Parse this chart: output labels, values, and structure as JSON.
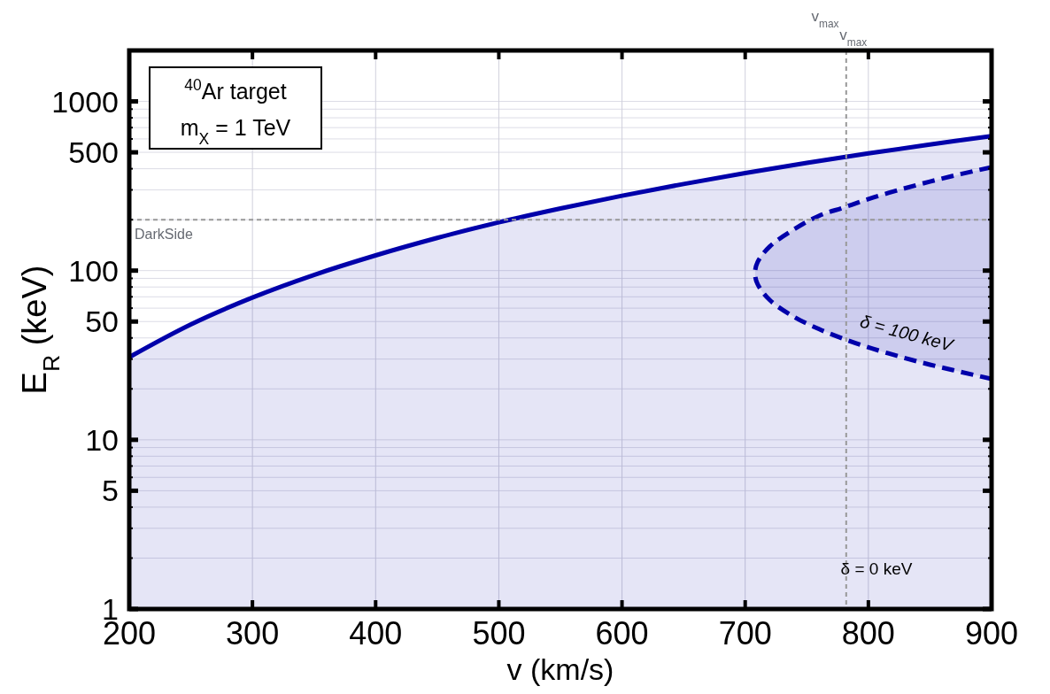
{
  "chart_data": {
    "type": "area",
    "xlabel": "v (km/s)",
    "ylabel": "E$_{R}$  (keV)",
    "log": "y",
    "grid": true,
    "xlim": [
      200,
      900
    ],
    "xticks": [
      200,
      300,
      400,
      500,
      600,
      700,
      800,
      900
    ],
    "ylim": [
      1,
      2000
    ],
    "yticks": [
      1,
      {
        "value": 2,
        "label": null
      },
      {
        "value": 3,
        "label": null
      },
      {
        "value": 4,
        "label": null
      },
      5,
      {
        "value": 6,
        "label": null
      },
      {
        "value": 7,
        "label": null
      },
      {
        "value": 8,
        "label": null
      },
      {
        "value": 9,
        "label": null
      },
      10,
      {
        "value": 20,
        "label": null
      },
      {
        "value": 30,
        "label": null
      },
      {
        "value": 40,
        "label": null
      },
      50,
      {
        "value": 60,
        "label": null
      },
      {
        "value": 70,
        "label": null
      },
      {
        "value": 80,
        "label": null
      },
      {
        "value": 90,
        "label": null
      },
      100,
      {
        "value": 200,
        "label": null
      },
      {
        "value": 300,
        "label": null
      },
      {
        "value": 400,
        "label": null
      },
      500,
      {
        "value": 600,
        "label": null
      },
      {
        "value": 700,
        "label": null
      },
      {
        "value": 800,
        "label": null
      },
      {
        "value": 900,
        "label": null
      },
      1000,
      {
        "value": 2000,
        "label": null
      }
    ],
    "series": [
      {
        "color": "#0000aa",
        "line_style": "solid",
        "x": [
          200,
          250,
          300,
          350,
          400,
          450,
          500,
          550,
          600,
          650,
          700,
          750,
          800,
          850,
          900
        ],
        "values": [
          30.8,
          48.1,
          69.3,
          94.3,
          123,
          156,
          193,
          233,
          277,
          325,
          377,
          433,
          493,
          556,
          624
        ]
      },
      {
        "color": "#0000aa",
        "line_style": "dashed",
        "x": [
          900,
          875,
          850,
          825,
          800,
          780,
          760,
          740,
          720,
          710,
          708,
          710,
          720,
          740,
          760,
          780,
          800,
          825,
          850,
          875,
          900
        ],
        "values": [
          408,
          372,
          336,
          300,
          265,
          236,
          211,
          176,
          139,
          112,
          96.5,
          83.4,
          66.9,
          53.1,
          45.1,
          39.5,
          35.2,
          31.1,
          27.8,
          25.2,
          22.9
        ]
      }
    ],
    "ref_lines": [
      {
        "axis": "y",
        "value": 200,
        "label": "DarkSide",
        "color": "#999999",
        "line_style": "dashed"
      },
      {
        "axis": "x",
        "value": 782,
        "label": "v$_{max}$",
        "color": "#999999",
        "line_style": "dashed"
      }
    ],
    "annotations": [
      "$^{40}$Ar target",
      "m$_{X}$ = 1 TeV",
      "δ = 100 keV",
      "δ = 0 keV",
      "v$_{max}$"
    ]
  }
}
